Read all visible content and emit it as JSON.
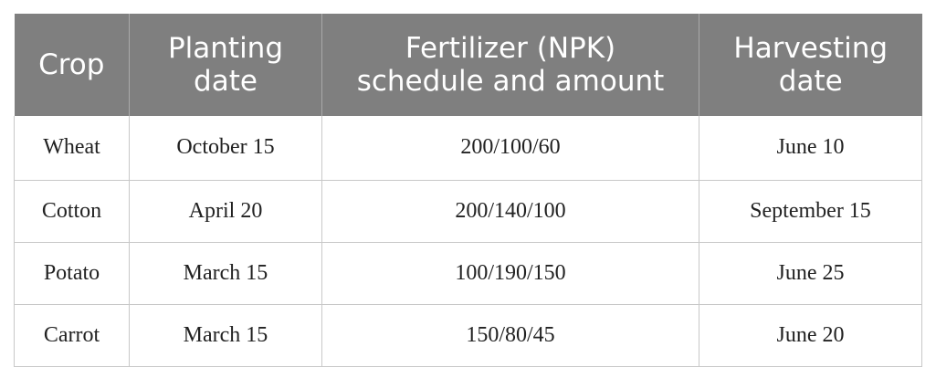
{
  "table": {
    "headers": [
      "Crop",
      "Planting\ndate",
      "Fertilizer (NPK)\nschedule and amount",
      "Harvesting\ndate"
    ],
    "rows": [
      [
        "Wheat",
        "October 15",
        "200/100/60",
        "June 10"
      ],
      [
        "Cotton",
        "April 20",
        "200/140/100",
        "September 15"
      ],
      [
        "Potato",
        "March 15",
        "100/190/150",
        "June 25"
      ],
      [
        "Carrot",
        "March 15",
        "150/80/45",
        "June 20"
      ]
    ]
  }
}
